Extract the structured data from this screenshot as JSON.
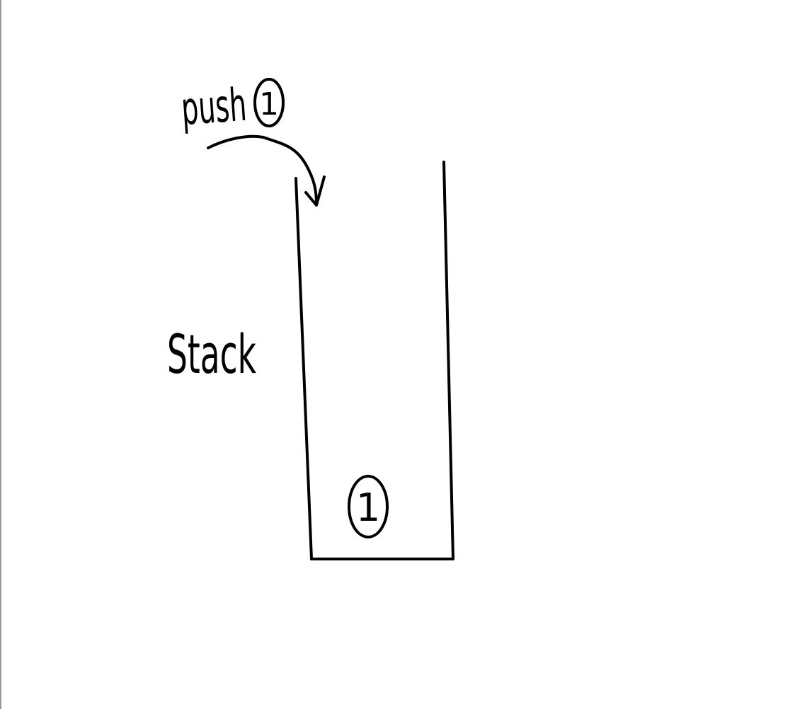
{
  "diagram": {
    "push_word": "push",
    "push_value": "1",
    "stack_label": "Stack",
    "stack_items": [
      "1"
    ],
    "ink_color": "#000000",
    "background_color": "#ffffff"
  }
}
